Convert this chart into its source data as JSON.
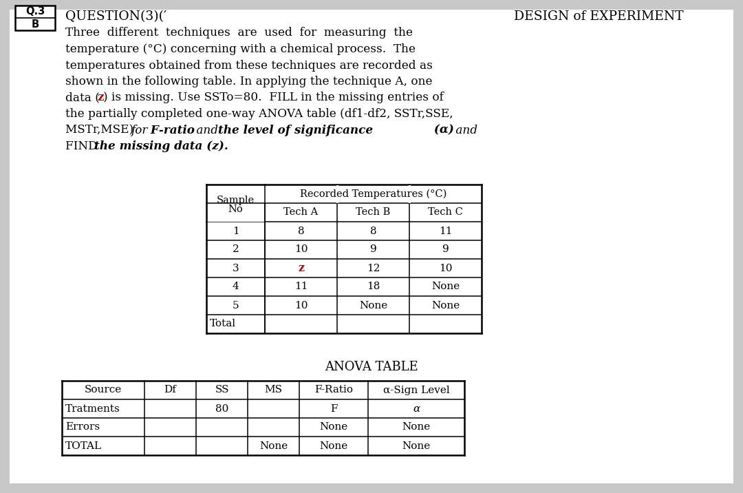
{
  "bg_color": "#c8c8c8",
  "z_color": "#cc0000",
  "title_left": "QUESTION(3)(′",
  "title_right": "DESIGN of EXPERIMENT",
  "para_lines": [
    "Three  different  techniques  are  used  for  measuring  the",
    "temperature (°C) concerning with a chemical process.  The",
    "temperatures obtained from these techniques are recorded as",
    "shown in the following table. In applying the technique A, one",
    "data (z) is missing. Use SSTo=80.  FILL in the missing entries of",
    "the partially completed one-way ANOVA table (df1-df2, SSTr,SSE,",
    "MSTr,MSE)",
    "FIND"
  ],
  "data_table_rows": [
    [
      "1",
      "8",
      "8",
      "11"
    ],
    [
      "2",
      "10",
      "9",
      "9"
    ],
    [
      "3",
      "z",
      "12",
      "10"
    ],
    [
      "4",
      "11",
      "18",
      "None"
    ],
    [
      "5",
      "10",
      "None",
      "None"
    ],
    [
      "Total",
      "",
      "",
      ""
    ]
  ],
  "anova_rows": [
    [
      "Tratments",
      "",
      "80",
      "",
      "F",
      "α"
    ],
    [
      "Errors",
      "",
      "",
      "",
      "None",
      "None"
    ],
    [
      "TOTAL",
      "",
      "",
      "None",
      "None",
      "None"
    ]
  ],
  "anova_headers": [
    "Source",
    "Df",
    "SS",
    "MS",
    "F-Ratio",
    "α-Sign Level"
  ]
}
